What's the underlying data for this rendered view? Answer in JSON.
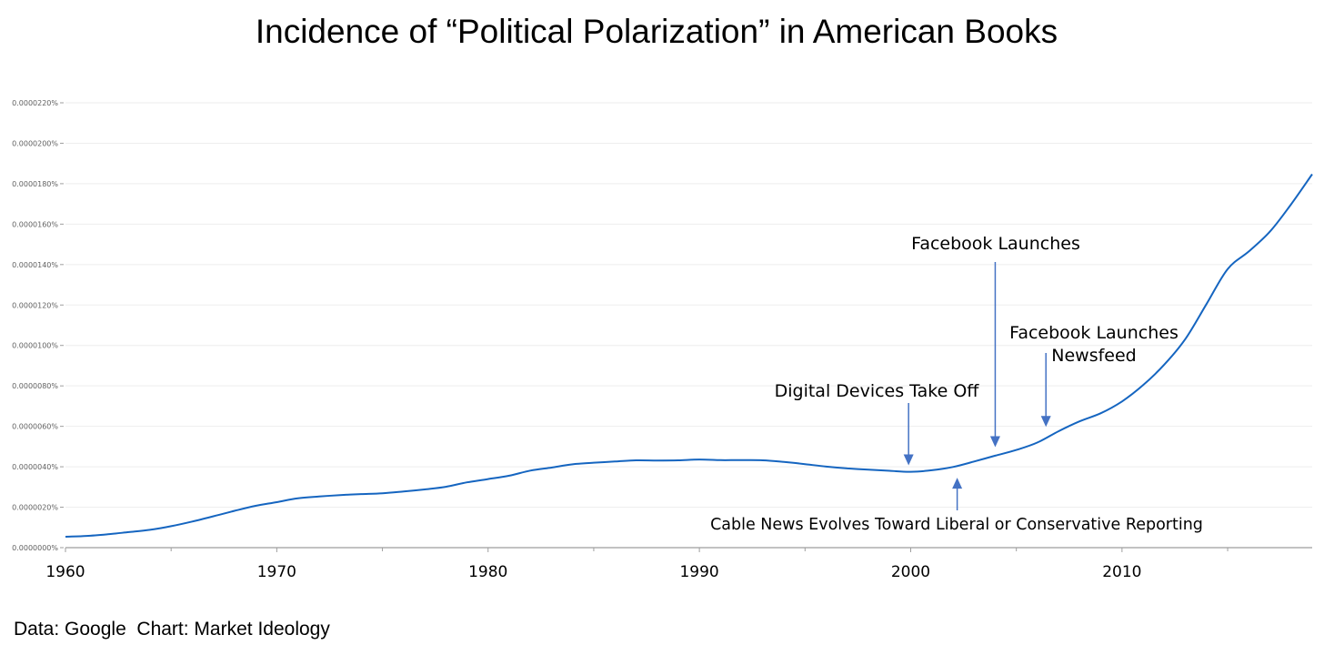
{
  "chart_data": {
    "type": "line",
    "title": "Incidence of “Political Polarization” in American Books",
    "xlabel": "",
    "ylabel": "",
    "xlim": [
      1960,
      2019
    ],
    "ylim": [
      0,
      2.2e-05
    ],
    "grid": true,
    "x_ticks": [
      "1960",
      "1970",
      "1980",
      "1990",
      "2000",
      "2010"
    ],
    "y_ticks": [
      "0.0000000%",
      "0.0000020%",
      "0.0000040%",
      "0.0000060%",
      "0.0000080%",
      "0.0000100%",
      "0.0000120%",
      "0.0000140%",
      "0.0000160%",
      "0.0000180%",
      "0.0000200%",
      "0.0000220%"
    ],
    "series": [
      {
        "name": "",
        "color": "#1565c0",
        "x": [
          1960,
          1961,
          1962,
          1963,
          1964,
          1965,
          1966,
          1967,
          1968,
          1969,
          1970,
          1971,
          1972,
          1973,
          1974,
          1975,
          1976,
          1977,
          1978,
          1979,
          1980,
          1981,
          1982,
          1983,
          1984,
          1985,
          1986,
          1987,
          1988,
          1989,
          1990,
          1991,
          1992,
          1993,
          1994,
          1995,
          1996,
          1997,
          1998,
          1999,
          2000,
          2001,
          2002,
          2003,
          2004,
          2005,
          2006,
          2007,
          2008,
          2009,
          2010,
          2011,
          2012,
          2013,
          2014,
          2015,
          2016,
          2017,
          2018,
          2019
        ],
        "values": [
          5.4e-07,
          5.8e-07,
          6.6e-07,
          7.7e-07,
          8.8e-07,
          1.06e-06,
          1.29e-06,
          1.55e-06,
          1.82e-06,
          2.07e-06,
          2.25e-06,
          2.44e-06,
          2.53e-06,
          2.6e-06,
          2.65e-06,
          2.69e-06,
          2.78e-06,
          2.88e-06,
          3.01e-06,
          3.23e-06,
          3.39e-06,
          3.56e-06,
          3.81e-06,
          3.96e-06,
          4.12e-06,
          4.2e-06,
          4.26e-06,
          4.32e-06,
          4.31e-06,
          4.32e-06,
          4.36e-06,
          4.33e-06,
          4.33e-06,
          4.32e-06,
          4.24e-06,
          4.13e-06,
          4.01e-06,
          3.92e-06,
          3.86e-06,
          3.8e-06,
          3.75e-06,
          3.83e-06,
          3.99e-06,
          4.26e-06,
          4.55e-06,
          4.83e-06,
          5.2e-06,
          5.76e-06,
          6.25e-06,
          6.65e-06,
          7.23e-06,
          8.04e-06,
          9.05e-06,
          1.032e-05,
          1.205e-05,
          1.378e-05,
          1.465e-05,
          1.563e-05,
          1.698e-05,
          1.847e-05
        ]
      }
    ],
    "annotations": [
      {
        "lines": [
          "Facebook Launches"
        ],
        "x": 2004,
        "y": 4.7e-06,
        "arrow": "down"
      },
      {
        "lines": [
          "Facebook Launches",
          "Newsfeed"
        ],
        "x": 2006.4,
        "y": 5.7e-06,
        "arrow": "down"
      },
      {
        "lines": [
          "Digital Devices Take Off"
        ],
        "x": 1999.9,
        "y": 3.8e-06,
        "arrow": "down"
      },
      {
        "lines": [
          "Cable News Evolves Toward Liberal or Conservative Reporting"
        ],
        "x": 2002.2,
        "y": 4e-06,
        "arrow": "up"
      }
    ]
  },
  "footer": {
    "source": "Data: Google  Chart: Market Ideology"
  }
}
